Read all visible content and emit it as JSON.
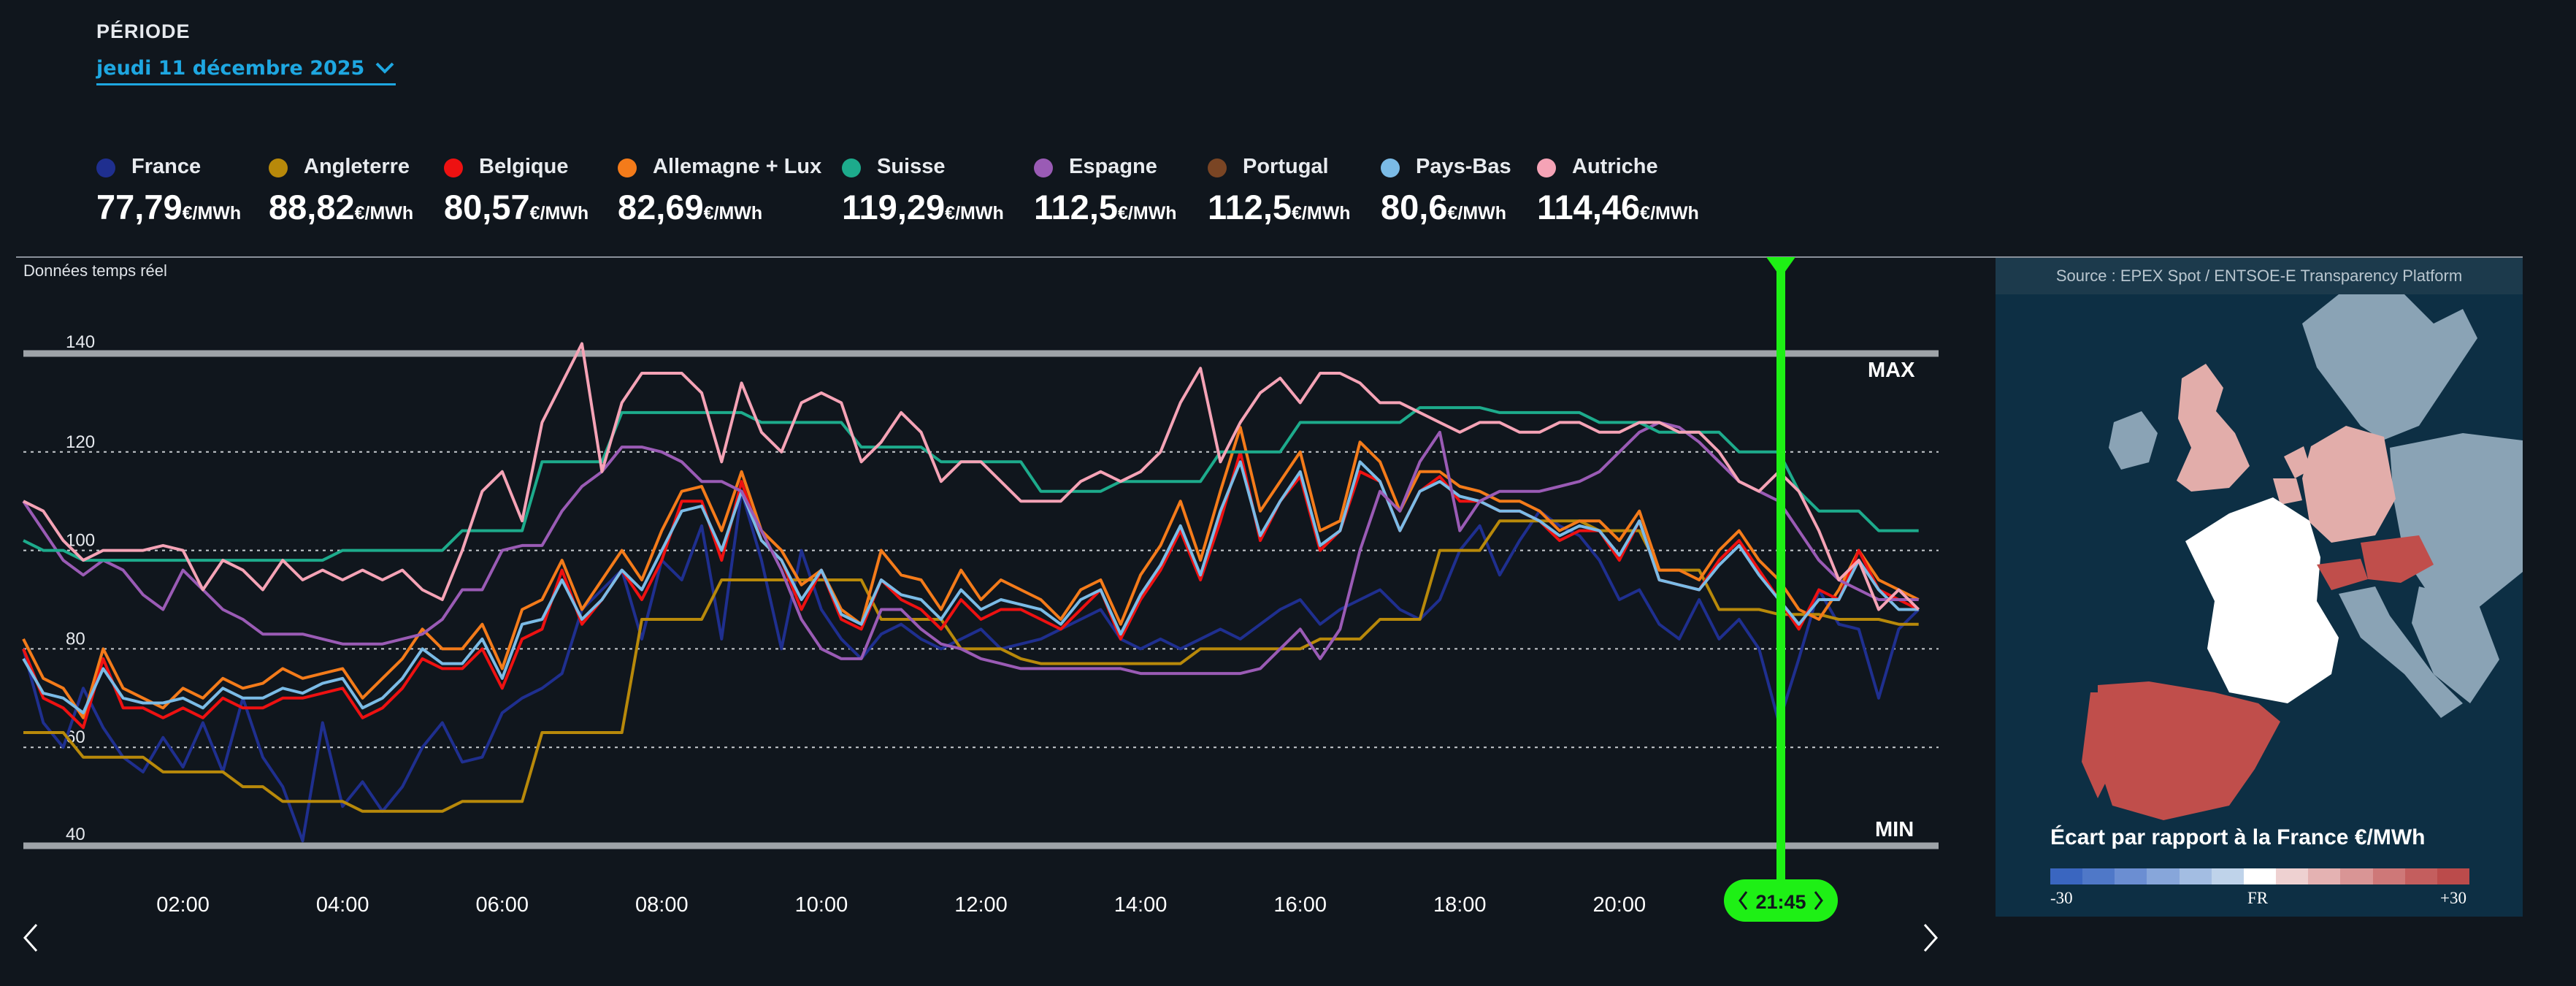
{
  "period": {
    "label": "PÉRIODE",
    "selected": "jeudi 11 décembre 2025"
  },
  "legend": [
    {
      "name": "France",
      "price": "77,79",
      "unit": "€/MWh",
      "color": "#1f2f8f"
    },
    {
      "name": "Angleterre",
      "price": "88,82",
      "unit": "€/MWh",
      "color": "#b8890a"
    },
    {
      "name": "Belgique",
      "price": "80,57",
      "unit": "€/MWh",
      "color": "#ee1111"
    },
    {
      "name": "Allemagne + Lux",
      "price": "82,69",
      "unit": "€/MWh",
      "color": "#f47b1a"
    },
    {
      "name": "Suisse",
      "price": "119,29",
      "unit": "€/MWh",
      "color": "#1dab8c"
    },
    {
      "name": "Espagne",
      "price": "112,5",
      "unit": "€/MWh",
      "color": "#9a5bb5"
    },
    {
      "name": "Portugal",
      "price": "112,5",
      "unit": "€/MWh",
      "color": "#7a4524"
    },
    {
      "name": "Pays-Bas",
      "price": "80,6",
      "unit": "€/MWh",
      "color": "#7bbbe6"
    },
    {
      "name": "Autriche",
      "price": "114,46",
      "unit": "€/MWh",
      "color": "#f5a3b6"
    }
  ],
  "realtime_label": "Données temps réel",
  "map": {
    "source": "Source : EPEX Spot / ENTSOE-E Transparency Platform",
    "legend_title": "Écart par rapport à la France €/MWh",
    "scale_min": "-30",
    "scale_mid": "FR",
    "scale_max": "+30",
    "scale_colors": [
      "#3a66c0",
      "#4f78c8",
      "#6b8ed2",
      "#87a6da",
      "#a3bde2",
      "#bfd3ea",
      "#ffffff",
      "#eed1d1",
      "#e4b2b2",
      "#d99595",
      "#ce7878",
      "#c45e5e",
      "#bb4b4b"
    ]
  },
  "cursor_time": "21:45",
  "chart_data": {
    "type": "line",
    "ylim": [
      40,
      140
    ],
    "yticks": [
      40,
      60,
      80,
      100,
      120,
      140
    ],
    "max_label": "MAX",
    "min_label": "MIN",
    "x": [
      "00:00",
      "00:15",
      "00:30",
      "00:45",
      "01:00",
      "01:15",
      "01:30",
      "01:45",
      "02:00",
      "02:15",
      "02:30",
      "02:45",
      "03:00",
      "03:15",
      "03:30",
      "03:45",
      "04:00",
      "04:15",
      "04:30",
      "04:45",
      "05:00",
      "05:15",
      "05:30",
      "05:45",
      "06:00",
      "06:15",
      "06:30",
      "06:45",
      "07:00",
      "07:15",
      "07:30",
      "07:45",
      "08:00",
      "08:15",
      "08:30",
      "08:45",
      "09:00",
      "09:15",
      "09:30",
      "09:45",
      "10:00",
      "10:15",
      "10:30",
      "10:45",
      "11:00",
      "11:15",
      "11:30",
      "11:45",
      "12:00",
      "12:15",
      "12:30",
      "12:45",
      "13:00",
      "13:15",
      "13:30",
      "13:45",
      "14:00",
      "14:15",
      "14:30",
      "14:45",
      "15:00",
      "15:15",
      "15:30",
      "15:45",
      "16:00",
      "16:15",
      "16:30",
      "16:45",
      "17:00",
      "17:15",
      "17:30",
      "17:45",
      "18:00",
      "18:15",
      "18:30",
      "18:45",
      "19:00",
      "19:15",
      "19:30",
      "19:45",
      "20:00",
      "20:15",
      "20:30",
      "20:45",
      "21:00",
      "21:15",
      "21:30",
      "21:45",
      "22:00",
      "22:15",
      "22:30",
      "22:45",
      "23:00",
      "23:15",
      "23:30",
      "23:45"
    ],
    "xtick_labels": [
      "02:00",
      "04:00",
      "06:00",
      "08:00",
      "10:00",
      "12:00",
      "14:00",
      "16:00",
      "18:00",
      "20:00"
    ],
    "series": [
      {
        "name": "France",
        "color": "#1f2f8f",
        "values": [
          80,
          65,
          60,
          72,
          64,
          58,
          55,
          62,
          56,
          65,
          55,
          70,
          58,
          52,
          41,
          65,
          48,
          53,
          47,
          52,
          60,
          65,
          57,
          58,
          67,
          70,
          72,
          75,
          88,
          92,
          96,
          82,
          98,
          94,
          105,
          82,
          112,
          98,
          80,
          100,
          88,
          82,
          78,
          83,
          85,
          82,
          80,
          82,
          84,
          80,
          81,
          82,
          84,
          86,
          88,
          82,
          80,
          82,
          80,
          82,
          84,
          82,
          85,
          88,
          90,
          85,
          88,
          90,
          92,
          88,
          86,
          90,
          100,
          105,
          95,
          102,
          108,
          105,
          103,
          98,
          90,
          92,
          85,
          82,
          90,
          82,
          86,
          80,
          65,
          78,
          92,
          85,
          84,
          70,
          84,
          88
        ]
      },
      {
        "name": "Angleterre",
        "color": "#b8890a",
        "values": [
          63,
          63,
          63,
          58,
          58,
          58,
          58,
          55,
          55,
          55,
          55,
          52,
          52,
          49,
          49,
          49,
          49,
          47,
          47,
          47,
          47,
          47,
          49,
          49,
          49,
          49,
          63,
          63,
          63,
          63,
          63,
          86,
          86,
          86,
          86,
          94,
          94,
          94,
          94,
          94,
          94,
          94,
          94,
          86,
          86,
          86,
          86,
          80,
          80,
          80,
          78,
          77,
          77,
          77,
          77,
          77,
          77,
          77,
          77,
          80,
          80,
          80,
          80,
          80,
          80,
          82,
          82,
          82,
          86,
          86,
          86,
          100,
          100,
          100,
          106,
          106,
          106,
          106,
          106,
          104,
          104,
          104,
          96,
          96,
          96,
          88,
          88,
          88,
          87,
          87,
          87,
          86,
          86,
          86,
          85,
          85
        ]
      },
      {
        "name": "Allemagne + Lux",
        "color": "#f47b1a",
        "values": [
          82,
          74,
          72,
          66,
          80,
          72,
          70,
          68,
          72,
          70,
          74,
          72,
          73,
          76,
          74,
          75,
          76,
          70,
          74,
          78,
          84,
          80,
          80,
          85,
          76,
          88,
          90,
          98,
          88,
          94,
          100,
          94,
          104,
          112,
          113,
          104,
          116,
          104,
          100,
          93,
          96,
          88,
          85,
          100,
          95,
          94,
          88,
          96,
          90,
          94,
          92,
          90,
          86,
          92,
          94,
          85,
          95,
          101,
          110,
          98,
          112,
          125,
          108,
          114,
          120,
          104,
          106,
          122,
          118,
          108,
          116,
          116,
          113,
          112,
          110,
          110,
          108,
          104,
          106,
          106,
          102,
          108,
          96,
          96,
          94,
          100,
          104,
          98,
          94,
          88,
          86,
          92,
          100,
          94,
          92,
          90
        ]
      },
      {
        "name": "Belgique",
        "color": "#ee1111",
        "values": [
          80,
          70,
          68,
          64,
          78,
          68,
          68,
          66,
          68,
          66,
          70,
          68,
          68,
          70,
          70,
          71,
          72,
          66,
          68,
          72,
          78,
          76,
          76,
          80,
          72,
          82,
          84,
          96,
          85,
          90,
          96,
          90,
          98,
          110,
          110,
          98,
          114,
          102,
          98,
          88,
          96,
          86,
          84,
          94,
          90,
          88,
          84,
          90,
          86,
          88,
          88,
          86,
          84,
          88,
          92,
          82,
          90,
          96,
          104,
          94,
          106,
          120,
          102,
          110,
          115,
          100,
          104,
          116,
          114,
          104,
          112,
          115,
          110,
          110,
          108,
          108,
          106,
          102,
          104,
          104,
          98,
          106,
          94,
          93,
          92,
          98,
          102,
          96,
          90,
          84,
          92,
          90,
          100,
          92,
          90,
          88
        ]
      },
      {
        "name": "Pays-Bas",
        "color": "#7bbbe6",
        "values": [
          78,
          71,
          70,
          67,
          76,
          70,
          69,
          69,
          70,
          68,
          72,
          70,
          70,
          72,
          71,
          73,
          74,
          68,
          70,
          74,
          80,
          77,
          77,
          82,
          74,
          85,
          86,
          94,
          86,
          90,
          96,
          92,
          100,
          108,
          109,
          100,
          112,
          102,
          98,
          90,
          96,
          87,
          85,
          94,
          91,
          90,
          86,
          92,
          88,
          90,
          89,
          88,
          85,
          90,
          92,
          83,
          91,
          97,
          105,
          95,
          108,
          118,
          103,
          110,
          116,
          101,
          104,
          118,
          114,
          104,
          112,
          114,
          111,
          110,
          108,
          108,
          106,
          103,
          105,
          104,
          99,
          106,
          94,
          93,
          92,
          97,
          101,
          95,
          90,
          85,
          90,
          90,
          98,
          92,
          88,
          88
        ]
      },
      {
        "name": "Espagne",
        "color": "#9a5bb5",
        "values": [
          110,
          104,
          98,
          95,
          98,
          96,
          91,
          88,
          96,
          92,
          88,
          86,
          83,
          83,
          83,
          82,
          81,
          81,
          81,
          82,
          83,
          86,
          92,
          92,
          100,
          101,
          101,
          108,
          113,
          116,
          121,
          121,
          120,
          118,
          114,
          114,
          112,
          104,
          96,
          86,
          80,
          78,
          78,
          88,
          88,
          84,
          81,
          80,
          78,
          77,
          76,
          76,
          76,
          76,
          76,
          76,
          75,
          75,
          75,
          75,
          75,
          75,
          76,
          80,
          84,
          78,
          84,
          100,
          112,
          108,
          118,
          124,
          104,
          110,
          112,
          112,
          112,
          113,
          114,
          116,
          120,
          124,
          126,
          125,
          122,
          118,
          114,
          112,
          110,
          104,
          98,
          94,
          92,
          90,
          90,
          90
        ]
      },
      {
        "name": "Suisse",
        "color": "#1dab8c",
        "values": [
          102,
          100,
          100,
          98,
          98,
          98,
          98,
          98,
          98,
          98,
          98,
          98,
          98,
          98,
          98,
          98,
          100,
          100,
          100,
          100,
          100,
          100,
          104,
          104,
          104,
          104,
          118,
          118,
          118,
          118,
          128,
          128,
          128,
          128,
          128,
          128,
          128,
          126,
          126,
          126,
          126,
          126,
          121,
          121,
          121,
          121,
          118,
          118,
          118,
          118,
          118,
          112,
          112,
          112,
          112,
          114,
          114,
          114,
          114,
          114,
          120,
          120,
          120,
          120,
          126,
          126,
          126,
          126,
          126,
          126,
          129,
          129,
          129,
          129,
          128,
          128,
          128,
          128,
          128,
          126,
          126,
          126,
          124,
          124,
          124,
          124,
          120,
          120,
          120,
          112,
          108,
          108,
          108,
          104,
          104,
          104
        ]
      },
      {
        "name": "Autriche",
        "color": "#f5a3b6",
        "values": [
          110,
          108,
          102,
          98,
          100,
          100,
          100,
          101,
          100,
          92,
          98,
          96,
          92,
          98,
          94,
          96,
          94,
          96,
          94,
          96,
          92,
          90,
          100,
          112,
          116,
          106,
          126,
          134,
          142,
          116,
          130,
          136,
          136,
          136,
          132,
          118,
          134,
          124,
          120,
          130,
          132,
          130,
          118,
          122,
          128,
          124,
          114,
          118,
          118,
          114,
          110,
          110,
          110,
          114,
          116,
          114,
          116,
          120,
          130,
          137,
          118,
          126,
          132,
          135,
          130,
          136,
          136,
          134,
          130,
          130,
          128,
          126,
          124,
          126,
          126,
          124,
          124,
          126,
          126,
          124,
          124,
          126,
          126,
          124,
          124,
          120,
          114,
          112,
          116,
          112,
          104,
          94,
          98,
          88,
          92,
          88
        ]
      }
    ]
  }
}
